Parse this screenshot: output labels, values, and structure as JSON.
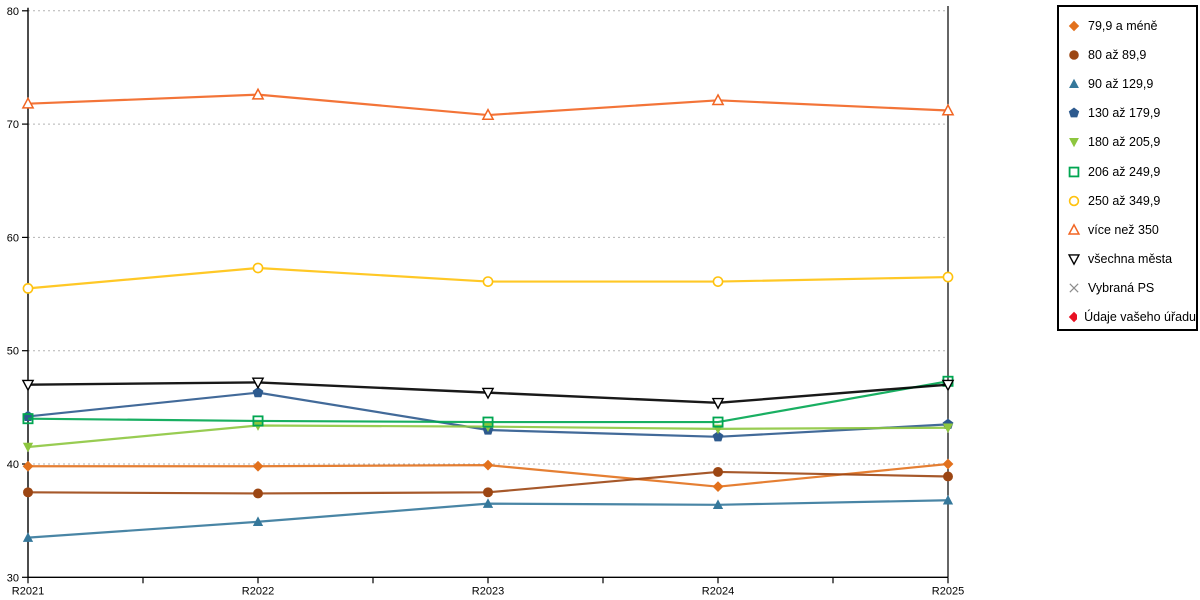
{
  "chart_data": {
    "type": "line",
    "title": "",
    "xlabel": "",
    "ylabel": "",
    "x_categories": [
      "R2021",
      "R2022",
      "R2023",
      "R2024",
      "R2025"
    ],
    "y_axis": {
      "min": 30,
      "max": 80,
      "tick_interval": 10,
      "tick_labels": [
        "30",
        "40",
        "50",
        "60",
        "70",
        "80"
      ]
    },
    "grid": "horizontal dotted gridlines at 40,50,60,70,80",
    "legend_position": "right",
    "series": [
      {
        "name": "79,9 a méně",
        "marker": "diamond-filled",
        "color": "#E2711D",
        "values": [
          39.8,
          39.8,
          39.9,
          38.0,
          40.0
        ]
      },
      {
        "name": "80 až 89,9",
        "marker": "circle-filled",
        "color": "#9C4613",
        "values": [
          37.5,
          37.4,
          37.5,
          39.3,
          38.9
        ]
      },
      {
        "name": "90 až 129,9",
        "marker": "triangle-up-filled",
        "color": "#35789B",
        "values": [
          33.5,
          34.9,
          36.5,
          36.4,
          36.8
        ]
      },
      {
        "name": "130 až 179,9",
        "marker": "pentagon-filled",
        "color": "#2D5A8E",
        "values": [
          44.2,
          46.3,
          43.0,
          42.4,
          43.5
        ]
      },
      {
        "name": "180 až 205,9",
        "marker": "triangle-down-filled",
        "color": "#8DC63F",
        "values": [
          41.5,
          43.4,
          43.3,
          43.1,
          43.2
        ]
      },
      {
        "name": "206 až 249,9",
        "marker": "square-open",
        "color": "#00A651",
        "values": [
          44.0,
          43.8,
          43.7,
          43.7,
          47.3
        ]
      },
      {
        "name": "250 až 349,9",
        "marker": "circle-open",
        "color": "#FFC20E",
        "values": [
          55.5,
          57.3,
          56.1,
          56.1,
          56.5
        ]
      },
      {
        "name": "více než 350",
        "marker": "triangle-up-open",
        "color": "#F26522",
        "values": [
          71.8,
          72.6,
          70.8,
          72.1,
          71.2
        ]
      },
      {
        "name": "všechna města",
        "marker": "triangle-down-open",
        "color": "#000000",
        "values": [
          47.0,
          47.2,
          46.3,
          45.4,
          47.0
        ]
      },
      {
        "name": "Vybraná PS",
        "marker": "x-mark",
        "color": "#8C8C8C",
        "values": null
      },
      {
        "name": "Údaje vašeho úřadu",
        "marker": "diamond-filled",
        "color": "#E81123",
        "values": null
      }
    ]
  },
  "layout_colors": {
    "gridline": "#b3b3b3",
    "axis": "#000000",
    "background": "#ffffff"
  }
}
